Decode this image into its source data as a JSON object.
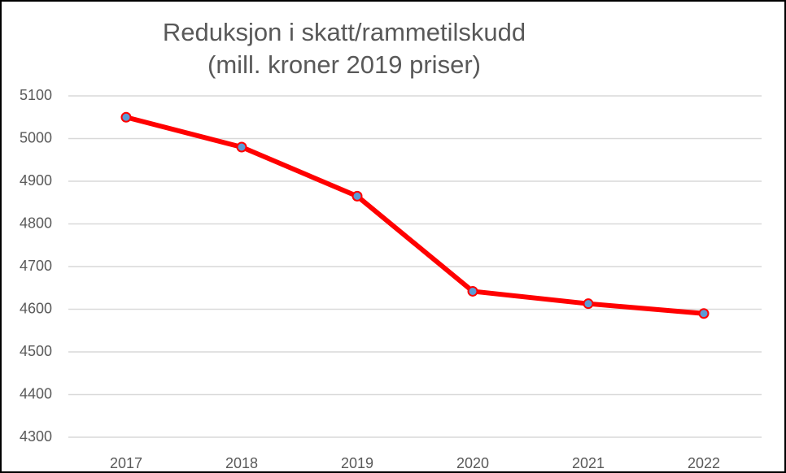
{
  "chart_data": {
    "type": "line",
    "title": "Reduksjon i skatt/rammetilskudd",
    "subtitle": "(mill. kroner 2019 priser)",
    "categories": [
      "2017",
      "2018",
      "2019",
      "2020",
      "2021",
      "2022"
    ],
    "series": [
      {
        "name": "Reduksjon",
        "color": "#ff0000",
        "marker_color": "#5b9bd5",
        "values": [
          5050,
          4980,
          4865,
          4642,
          4613,
          4590
        ]
      }
    ],
    "ylim": [
      4300,
      5100
    ],
    "yticks": [
      4300,
      4400,
      4500,
      4600,
      4700,
      4800,
      4900,
      5000,
      5100
    ],
    "grid": true,
    "legend": false
  }
}
